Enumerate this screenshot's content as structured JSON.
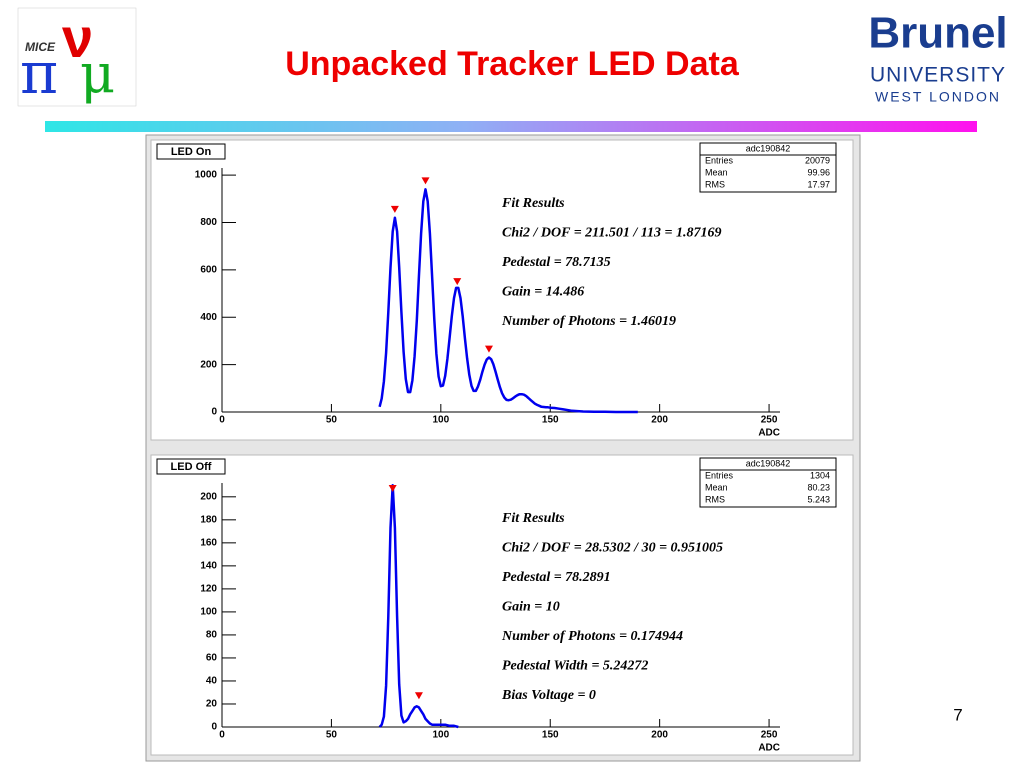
{
  "title": "Unpacked Tracker LED Data",
  "page_number": "7",
  "logos": {
    "mice": "MICE",
    "mice_glyphs": [
      "π",
      "ν",
      "μ"
    ],
    "brunel": "Brunel",
    "university": "UNIVERSITY",
    "location": "WEST LONDON"
  },
  "chart_data": [
    {
      "type": "line",
      "title": "LED On",
      "x_label": "ADC",
      "color": "#0000ee",
      "xlim": [
        0,
        255
      ],
      "xticks": [
        0,
        50,
        100,
        150,
        200,
        250
      ],
      "ylim": [
        0,
        1030
      ],
      "yticks": [
        0,
        200,
        400,
        600,
        800,
        1000
      ],
      "x": [
        72,
        73,
        74,
        75,
        76,
        77,
        78,
        79,
        80,
        81,
        82,
        83,
        84,
        85,
        86,
        87,
        88,
        89,
        90,
        91,
        92,
        93,
        94,
        95,
        96,
        97,
        98,
        99,
        100,
        101,
        102,
        103,
        104,
        105,
        106,
        107,
        108,
        109,
        110,
        111,
        112,
        113,
        114,
        115,
        116,
        117,
        118,
        119,
        120,
        121,
        122,
        123,
        124,
        125,
        126,
        127,
        128,
        129,
        130,
        131,
        132,
        133,
        134,
        135,
        136,
        137,
        138,
        139,
        140,
        141,
        142,
        143,
        144,
        145,
        146,
        147,
        148,
        149,
        150,
        152,
        154,
        156,
        160,
        165,
        170,
        175,
        180,
        190
      ],
      "values": [
        22,
        57,
        129,
        250,
        421,
        610,
        762,
        820,
        762,
        610,
        422,
        254,
        139,
        84,
        84,
        134,
        236,
        386,
        571,
        753,
        889,
        940,
        889,
        754,
        573,
        391,
        245,
        150,
        109,
        112,
        153,
        224,
        313,
        404,
        481,
        524,
        524,
        481,
        404,
        312,
        227,
        157,
        110,
        89,
        89,
        108,
        136,
        170,
        200,
        222,
        230,
        223,
        202,
        171,
        137,
        105,
        79,
        61,
        51,
        50,
        52,
        58,
        65,
        71,
        75,
        75,
        73,
        67,
        59,
        51,
        43,
        35,
        30,
        26,
        22,
        21,
        20,
        20,
        18,
        17,
        14,
        11,
        5,
        2,
        1,
        1,
        0,
        0
      ],
      "peak_markers": {
        "color": "#ee0000",
        "x": [
          79,
          93,
          107.5,
          122
        ],
        "y": [
          845,
          965,
          540,
          255
        ]
      },
      "stats": {
        "title": "adc190842",
        "rows": [
          [
            "Entries",
            20079
          ],
          [
            "Mean",
            99.96
          ],
          [
            "RMS",
            17.97
          ]
        ]
      },
      "annotations": [
        "Fit Results",
        "Chi2 / DOF = 211.501 / 113 = 1.87169",
        "Pedestal = 78.7135",
        "Gain = 14.486",
        "Number of Photons = 1.46019"
      ]
    },
    {
      "type": "line",
      "title": "LED Off",
      "x_label": "ADC",
      "color": "#0000ee",
      "xlim": [
        0,
        255
      ],
      "xticks": [
        0,
        50,
        100,
        150,
        200,
        250
      ],
      "ylim": [
        0,
        212
      ],
      "yticks": [
        0,
        20,
        40,
        60,
        80,
        100,
        120,
        140,
        160,
        180,
        200
      ],
      "x": [
        72,
        73,
        74,
        75,
        76,
        77,
        78,
        79,
        80,
        81,
        82,
        83,
        84,
        85,
        86,
        87,
        88,
        89,
        90,
        91,
        92,
        93,
        94,
        95,
        96,
        97,
        98,
        100,
        102,
        104,
        106,
        108
      ],
      "values": [
        0,
        2,
        9,
        36,
        96,
        173,
        210,
        173,
        96,
        37,
        10,
        4,
        5,
        7,
        11,
        14,
        17,
        18,
        17,
        14,
        11,
        7,
        5,
        3,
        2,
        2,
        2,
        2,
        2,
        1,
        1,
        0
      ],
      "peak_markers": {
        "color": "#ee0000",
        "x": [
          78,
          90
        ],
        "y": [
          205,
          25
        ]
      },
      "stats": {
        "title": "adc190842",
        "rows": [
          [
            "Entries",
            1304
          ],
          [
            "Mean",
            80.23
          ],
          [
            "RMS",
            5.243
          ]
        ]
      },
      "annotations": [
        "Fit Results",
        "Chi2 / DOF = 28.5302 / 30 = 0.951005",
        "Pedestal = 78.2891",
        "Gain = 10",
        "Number of Photons = 0.174944",
        "Pedestal Width = 5.24272",
        "Bias Voltage = 0"
      ]
    }
  ]
}
